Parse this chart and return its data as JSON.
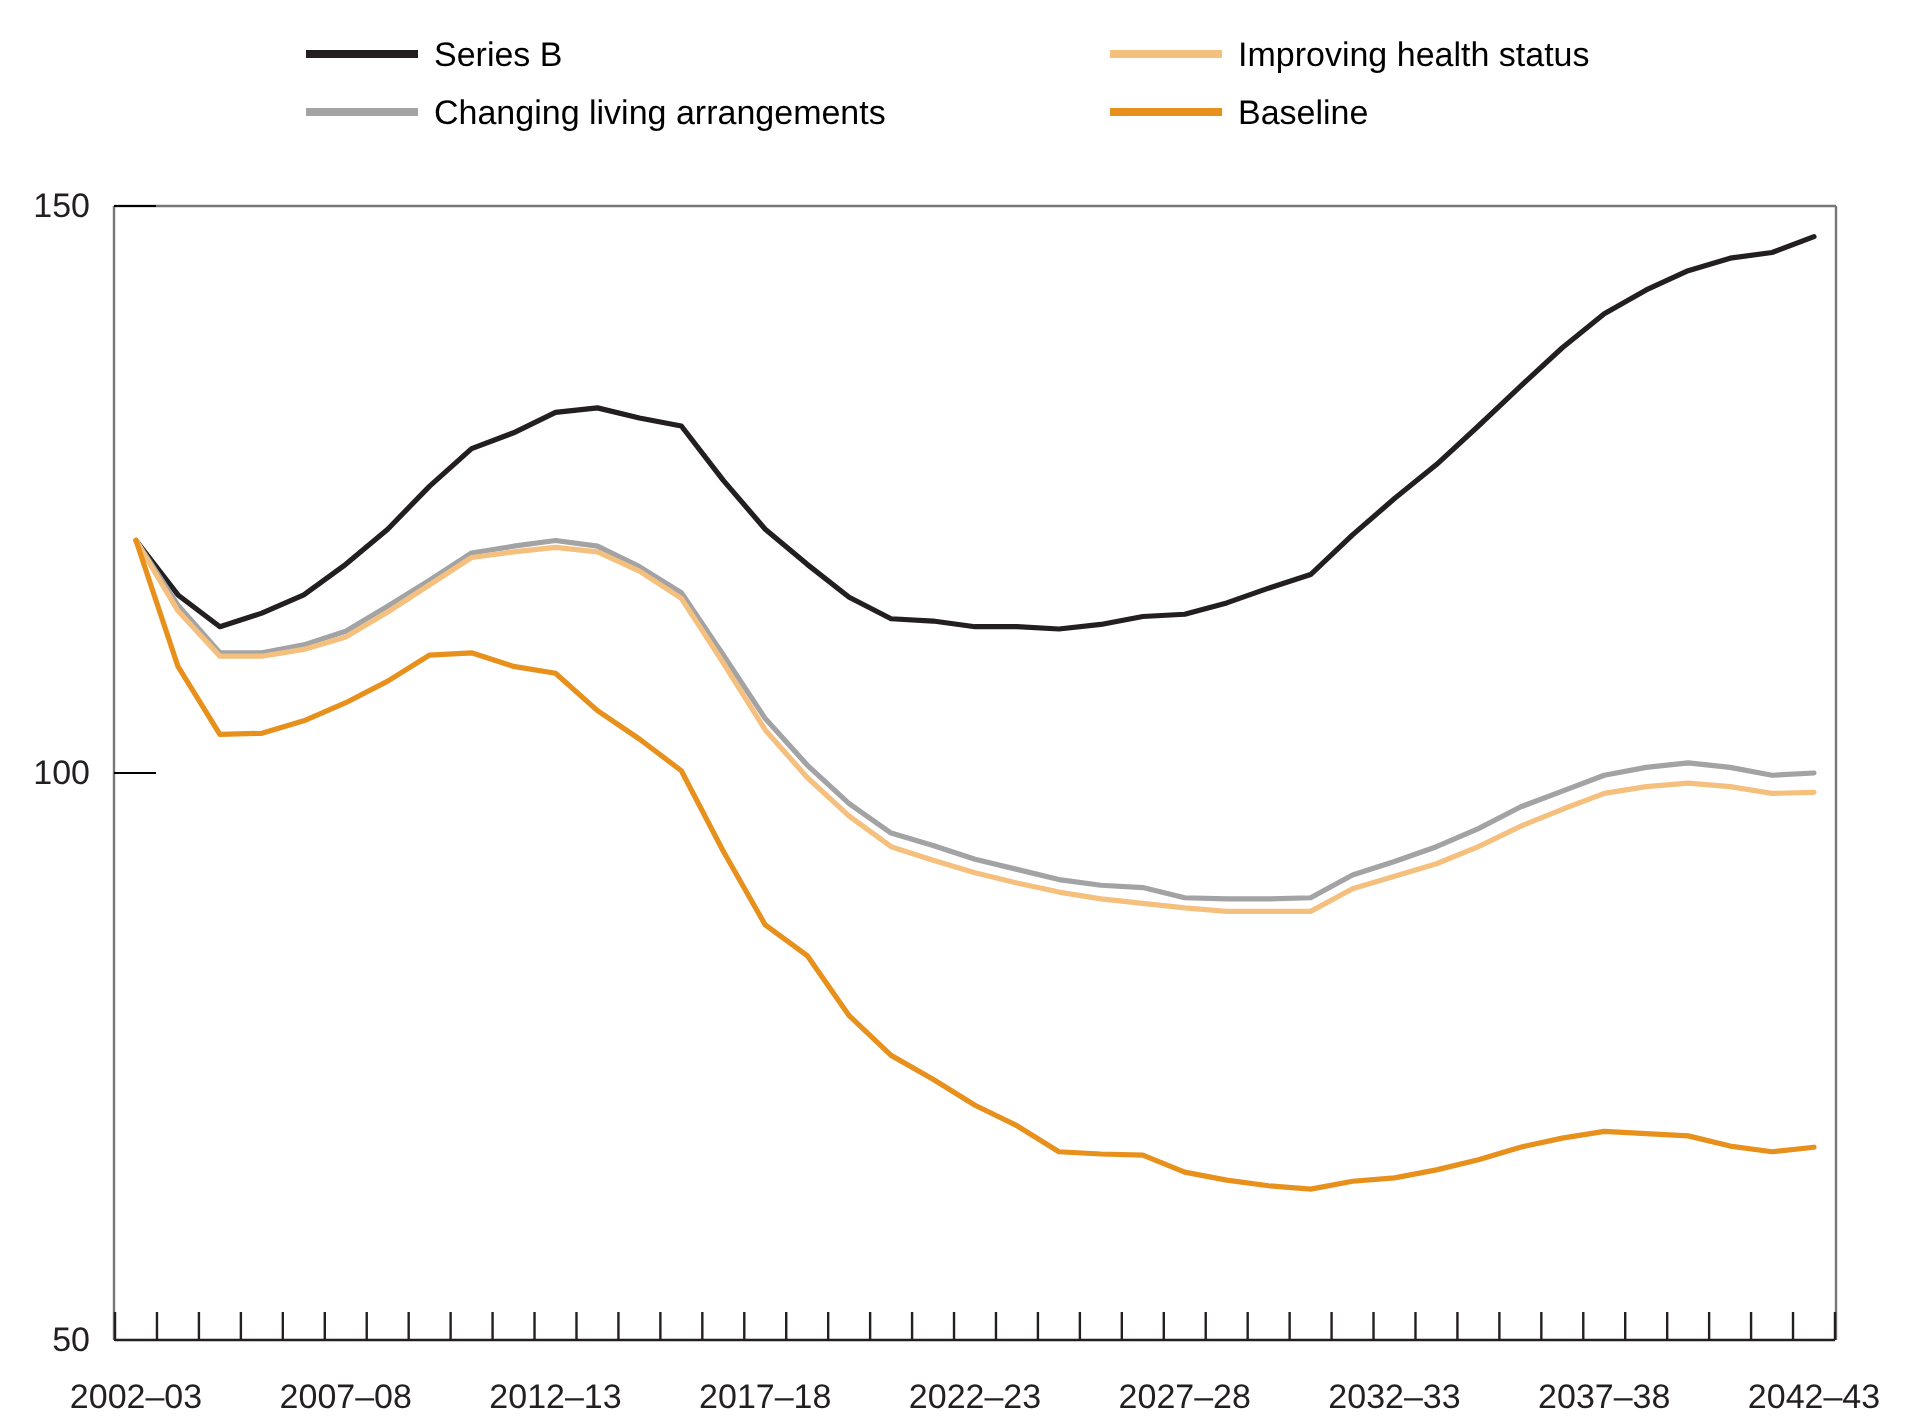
{
  "chart_data": {
    "type": "line",
    "categories": [
      "2002–03",
      null,
      null,
      null,
      null,
      "2007–08",
      null,
      null,
      null,
      null,
      "2012–13",
      null,
      null,
      null,
      null,
      "2017–18",
      null,
      null,
      null,
      null,
      "2022–23",
      null,
      null,
      null,
      null,
      "2027–28",
      null,
      null,
      null,
      null,
      "2032–33",
      null,
      null,
      null,
      null,
      "2037–38",
      null,
      null,
      null,
      null,
      "2042–43"
    ],
    "ylim": [
      50,
      150
    ],
    "yticks": [
      50,
      100,
      150
    ],
    "grid": false,
    "legend": "top",
    "marker": "none",
    "line_style": "solid",
    "series": [
      {
        "name": "Series B",
        "color": "#231f20",
        "values": [
          120.5,
          115.7,
          112.9,
          114.1,
          115.7,
          118.4,
          121.5,
          125.3,
          128.6,
          130.0,
          131.8,
          132.2,
          131.3,
          130.6,
          125.8,
          121.5,
          118.4,
          115.5,
          113.6,
          113.4,
          112.9,
          112.9,
          112.7,
          113.1,
          113.8,
          114.0,
          115.0,
          116.3,
          117.5,
          121.0,
          124.2,
          127.2,
          130.6,
          134.1,
          137.5,
          140.5,
          142.6,
          144.3,
          145.4,
          145.9,
          147.3
        ]
      },
      {
        "name": "Changing living arrangements",
        "color": "#a3a3a5",
        "values": [
          120.5,
          114.8,
          110.6,
          110.6,
          111.3,
          112.5,
          114.7,
          117.0,
          119.4,
          120.0,
          120.5,
          120.0,
          118.2,
          115.9,
          110.4,
          104.8,
          100.7,
          97.3,
          94.7,
          93.6,
          92.4,
          91.5,
          90.6,
          90.1,
          89.9,
          89.0,
          88.9,
          88.9,
          89.0,
          91.0,
          92.2,
          93.5,
          95.1,
          97.0,
          98.4,
          99.8,
          100.5,
          100.9,
          100.5,
          99.8,
          100.0
        ]
      },
      {
        "name": "Improving health status",
        "color": "#f5c07e",
        "values": [
          120.5,
          114.3,
          110.3,
          110.3,
          110.9,
          112.0,
          114.2,
          116.6,
          119.0,
          119.5,
          119.9,
          119.5,
          117.8,
          115.4,
          109.7,
          103.8,
          99.6,
          96.2,
          93.5,
          92.3,
          91.2,
          90.3,
          89.5,
          88.9,
          88.5,
          88.1,
          87.8,
          87.8,
          87.8,
          89.8,
          90.9,
          92.0,
          93.5,
          95.3,
          96.8,
          98.2,
          98.8,
          99.1,
          98.8,
          98.2,
          98.3
        ]
      },
      {
        "name": "Baseline",
        "color": "#e8901c",
        "values": [
          120.5,
          109.4,
          103.4,
          103.5,
          104.6,
          106.2,
          108.1,
          110.4,
          110.6,
          109.4,
          108.8,
          105.5,
          103.0,
          100.2,
          93.1,
          86.6,
          83.9,
          78.6,
          75.1,
          73.0,
          70.7,
          68.9,
          66.6,
          66.4,
          66.3,
          64.8,
          64.1,
          63.6,
          63.3,
          64.0,
          64.3,
          65.0,
          65.9,
          67.0,
          67.8,
          68.4,
          68.2,
          68.0,
          67.1,
          66.6,
          67.0
        ]
      }
    ]
  }
}
